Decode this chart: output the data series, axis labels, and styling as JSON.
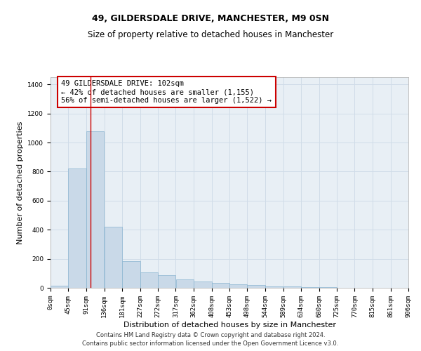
{
  "title1": "49, GILDERSDALE DRIVE, MANCHESTER, M9 0SN",
  "title2": "Size of property relative to detached houses in Manchester",
  "xlabel": "Distribution of detached houses by size in Manchester",
  "ylabel": "Number of detached properties",
  "annotation_line1": "49 GILDERSDALE DRIVE: 102sqm",
  "annotation_line2": "← 42% of detached houses are smaller (1,155)",
  "annotation_line3": "56% of semi-detached houses are larger (1,522) →",
  "bar_color": "#c9d9e8",
  "bar_edge_color": "#8ab4d0",
  "vline_color": "#cc0000",
  "vline_x": 102,
  "annotation_box_facecolor": "#ffffff",
  "annotation_box_edge": "#cc0000",
  "grid_color": "#d0dce8",
  "background_color": "#e8eff5",
  "footer1": "Contains HM Land Registry data © Crown copyright and database right 2024.",
  "footer2": "Contains public sector information licensed under the Open Government Licence v3.0.",
  "bin_edges": [
    0,
    45,
    91,
    136,
    181,
    227,
    272,
    317,
    362,
    408,
    453,
    498,
    544,
    589,
    634,
    680,
    725,
    770,
    815,
    861,
    906
  ],
  "bar_heights": [
    15,
    820,
    1080,
    420,
    185,
    105,
    85,
    60,
    45,
    35,
    25,
    18,
    12,
    8,
    5,
    3,
    2,
    1,
    0,
    0
  ],
  "ylim": [
    0,
    1450
  ],
  "yticks": [
    0,
    200,
    400,
    600,
    800,
    1000,
    1200,
    1400
  ],
  "title1_fontsize": 9,
  "title2_fontsize": 8.5,
  "xlabel_fontsize": 8,
  "ylabel_fontsize": 8,
  "tick_fontsize": 6.5,
  "annotation_fontsize": 7.5,
  "footer_fontsize": 6
}
